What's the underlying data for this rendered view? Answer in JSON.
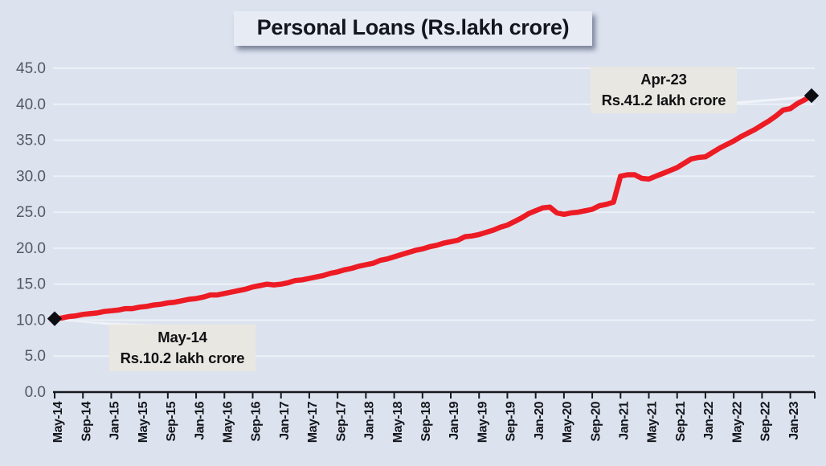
{
  "title": "Personal Loans (Rs.lakh crore)",
  "colors": {
    "background": "#dce3ef",
    "gridline": "#edf1f7",
    "axis_line": "#17181d",
    "x_label_color": "#14151a",
    "y_label_color": "#545962",
    "series_line": "#ed1b24",
    "marker": "#0d0d12",
    "title_bg": "#e7ebf4",
    "title_fg": "#14161d",
    "callout_bg": "#e9e7e1",
    "leader": "#f3f5f9"
  },
  "chart_data": {
    "type": "line",
    "title": "Personal Loans (Rs.lakh crore)",
    "xlabel": "",
    "ylabel": "",
    "ylim": [
      0,
      45
    ],
    "y_tick_step": 5,
    "y_tick_labels": [
      "0.0",
      "5.0",
      "10.0",
      "15.0",
      "20.0",
      "25.0",
      "30.0",
      "35.0",
      "40.0",
      "45.0"
    ],
    "grid": "horizontal",
    "legend": "none",
    "x_start_month": "May-14",
    "x_end_month": "Apr-23",
    "x_label_every_n_months": 4,
    "x_labels": [
      "May-14",
      "Sep-14",
      "Jan-15",
      "May-15",
      "Sep-15",
      "Jan-16",
      "May-16",
      "Sep-16",
      "Jan-17",
      "May-17",
      "Sep-17",
      "Jan-18",
      "May-18",
      "Sep-18",
      "Jan-19",
      "May-19",
      "Sep-19",
      "Jan-20",
      "May-20",
      "Sep-20",
      "Jan-21",
      "May-21",
      "Sep-21",
      "Jan-22",
      "May-22",
      "Sep-22",
      "Jan-23"
    ],
    "series": [
      {
        "name": "Personal Loans (Rs.lakh crore)",
        "frequency": "monthly",
        "values": [
          10.2,
          10.3,
          10.5,
          10.6,
          10.8,
          10.9,
          11.0,
          11.2,
          11.3,
          11.4,
          11.6,
          11.6,
          11.8,
          11.9,
          12.1,
          12.2,
          12.4,
          12.5,
          12.7,
          12.9,
          13.0,
          13.2,
          13.5,
          13.5,
          13.7,
          13.9,
          14.1,
          14.3,
          14.6,
          14.8,
          15.0,
          14.9,
          15.0,
          15.2,
          15.5,
          15.6,
          15.8,
          16.0,
          16.2,
          16.5,
          16.7,
          17.0,
          17.2,
          17.5,
          17.7,
          17.9,
          18.3,
          18.5,
          18.8,
          19.1,
          19.4,
          19.7,
          19.9,
          20.2,
          20.4,
          20.7,
          20.9,
          21.1,
          21.6,
          21.7,
          21.9,
          22.2,
          22.5,
          22.9,
          23.2,
          23.7,
          24.2,
          24.8,
          25.2,
          25.6,
          25.7,
          24.9,
          24.7,
          24.9,
          25.0,
          25.2,
          25.4,
          25.9,
          26.1,
          26.4,
          30.0,
          30.2,
          30.2,
          29.7,
          29.6,
          30.0,
          30.4,
          30.8,
          31.2,
          31.8,
          32.4,
          32.6,
          32.7,
          33.3,
          33.9,
          34.4,
          34.9,
          35.5,
          36.0,
          36.5,
          37.1,
          37.7,
          38.4,
          39.2,
          39.4,
          40.1,
          40.6,
          41.2
        ]
      }
    ],
    "annotations": [
      {
        "id": "end-point",
        "line1": "Apr-23",
        "line2": "Rs.41.2 lakh crore",
        "point_month": "Apr-23",
        "point_value": 41.2
      },
      {
        "id": "start-point",
        "line1": "May-14",
        "line2": "Rs.10.2 lakh crore",
        "point_month": "May-14",
        "point_value": 10.2
      }
    ]
  }
}
